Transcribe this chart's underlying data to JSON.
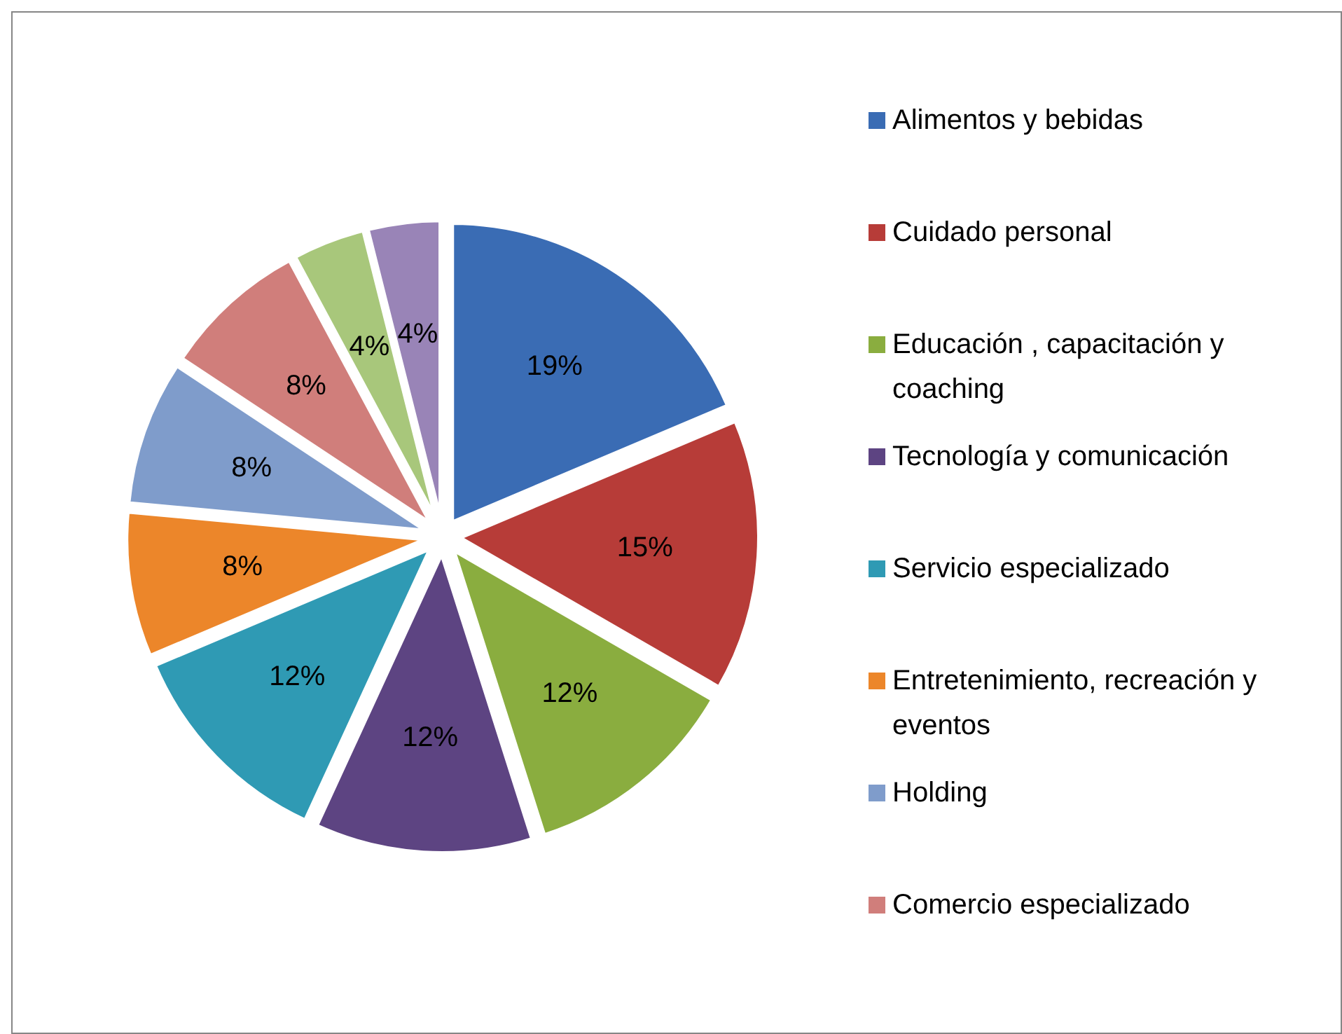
{
  "chart_data": {
    "type": "pie",
    "categories": [
      "Alimentos y bebidas",
      "Cuidado personal",
      "Educación , capacitación y coaching",
      "Tecnología y comunicación",
      "Servicio especializado",
      "Entretenimiento, recreación y eventos",
      "Holding",
      "Comercio especializado",
      null,
      null
    ],
    "values": [
      19,
      15,
      12,
      12,
      12,
      8,
      8,
      8,
      4,
      4
    ],
    "value_labels": [
      "19%",
      "15%",
      "12%",
      "12%",
      "12%",
      "8%",
      "8%",
      "8%",
      "4%",
      "4%"
    ],
    "colors": [
      "#3a6cb4",
      "#b73c38",
      "#8aad3f",
      "#5d4482",
      "#2f9ab4",
      "#ec862a",
      "#7f9ccb",
      "#d07e7b",
      "#a8c77b",
      "#9984b7"
    ],
    "legend": "right"
  }
}
